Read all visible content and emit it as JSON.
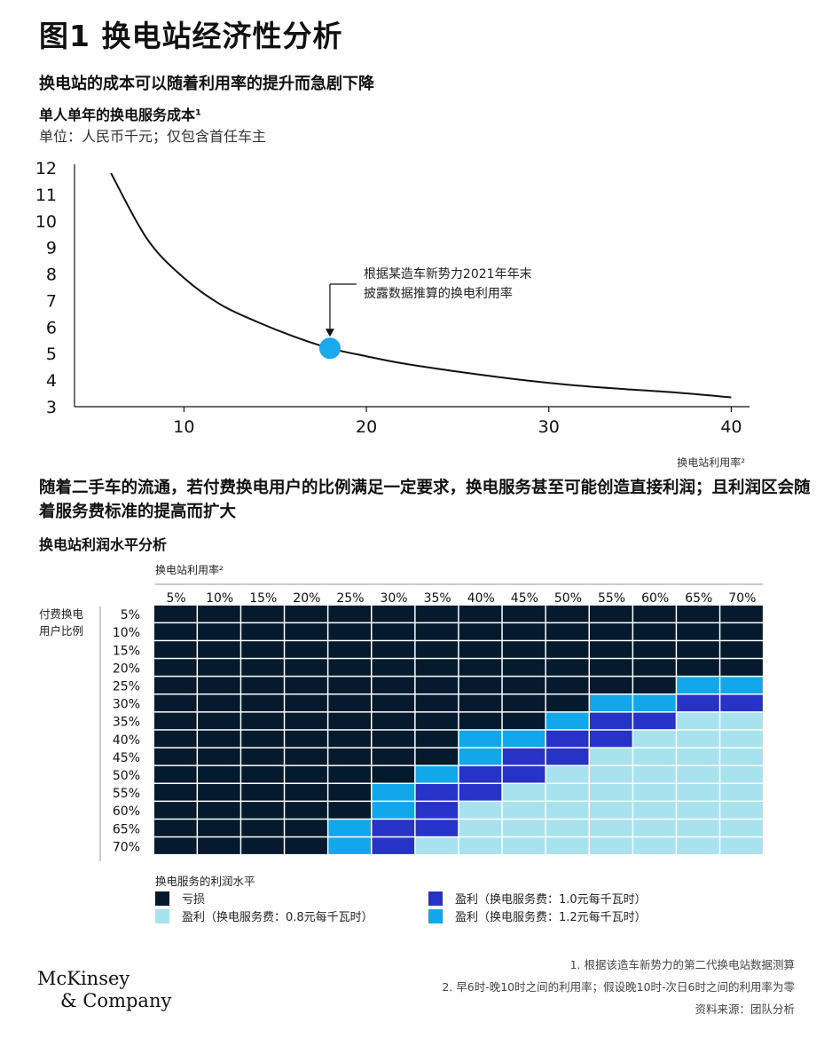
{
  "header": {
    "title": "图1 换电站经济性分析",
    "subtitle1": "换电站的成本可以随着利用率的提升而急剧下降",
    "chart1_title": "单人单年的换电服务成本¹",
    "chart1_unit": "单位：人民币千元；仅包含首任车主"
  },
  "section2": {
    "heading": "随着二手车的流通，若付费换电用户的比例满足一定要求，换电服务甚至可能创造直接利润；且利润区会随着服务费标准的提高而扩大",
    "chart2_title": "换电站利润水平分析"
  },
  "colors": {
    "loss": "#061a2e",
    "profit_0_8": "#a8e2ee",
    "profit_1_0": "#2733c6",
    "profit_1_2": "#12a7ea",
    "line": "#111111",
    "marker": "#1aa8ee"
  },
  "chart_data": [
    {
      "type": "line",
      "title": "单人单年的换电服务成本¹",
      "xlabel": "换电站利用率²",
      "ylabel": "",
      "xlim": [
        4,
        41
      ],
      "ylim": [
        3,
        12
      ],
      "x_ticks": [
        10,
        20,
        30,
        40
      ],
      "y_ticks": [
        3,
        4,
        5,
        6,
        7,
        8,
        9,
        10,
        11,
        12
      ],
      "x": [
        6,
        8,
        10,
        12,
        14,
        16,
        18,
        20,
        22,
        25,
        28,
        31,
        34,
        37,
        40
      ],
      "y": [
        11.8,
        9.3,
        7.85,
        6.85,
        6.2,
        5.65,
        5.2,
        4.9,
        4.63,
        4.32,
        4.05,
        3.83,
        3.67,
        3.53,
        3.35
      ],
      "highlight_point": {
        "x": 18,
        "y": 5.2
      },
      "annotation": [
        "根据某造车新势力2021年年末",
        "披露数据推算的换电利用率"
      ]
    },
    {
      "type": "heatmap",
      "title": "换电站利润水平分析",
      "x_axis_title": "换电站利用率²",
      "y_axis_title": [
        "付费换电",
        "用户比例"
      ],
      "x_labels": [
        "5%",
        "10%",
        "15%",
        "20%",
        "25%",
        "30%",
        "35%",
        "40%",
        "45%",
        "50%",
        "55%",
        "60%",
        "65%",
        "70%"
      ],
      "y_labels": [
        "5%",
        "10%",
        "15%",
        "20%",
        "25%",
        "30%",
        "35%",
        "40%",
        "45%",
        "50%",
        "55%",
        "60%",
        "65%",
        "70%"
      ],
      "legend_title": "换电服务的利润水平",
      "legend": [
        {
          "code": 0,
          "label": "亏损"
        },
        {
          "code": 1,
          "label": "盈利（换电服务费：0.8元每千瓦时）"
        },
        {
          "code": 2,
          "label": "盈利（换电服务费：1.0元每千瓦时）"
        },
        {
          "code": 3,
          "label": "盈利（换电服务费：1.2元每千瓦时）"
        }
      ],
      "values": [
        [
          0,
          0,
          0,
          0,
          0,
          0,
          0,
          0,
          0,
          0,
          0,
          0,
          0,
          0
        ],
        [
          0,
          0,
          0,
          0,
          0,
          0,
          0,
          0,
          0,
          0,
          0,
          0,
          0,
          0
        ],
        [
          0,
          0,
          0,
          0,
          0,
          0,
          0,
          0,
          0,
          0,
          0,
          0,
          0,
          0
        ],
        [
          0,
          0,
          0,
          0,
          0,
          0,
          0,
          0,
          0,
          0,
          0,
          0,
          0,
          0
        ],
        [
          0,
          0,
          0,
          0,
          0,
          0,
          0,
          0,
          0,
          0,
          0,
          0,
          3,
          3
        ],
        [
          0,
          0,
          0,
          0,
          0,
          0,
          0,
          0,
          0,
          0,
          3,
          3,
          2,
          2
        ],
        [
          0,
          0,
          0,
          0,
          0,
          0,
          0,
          0,
          0,
          3,
          2,
          2,
          1,
          1
        ],
        [
          0,
          0,
          0,
          0,
          0,
          0,
          0,
          3,
          3,
          2,
          2,
          1,
          1,
          1
        ],
        [
          0,
          0,
          0,
          0,
          0,
          0,
          0,
          3,
          2,
          2,
          1,
          1,
          1,
          1
        ],
        [
          0,
          0,
          0,
          0,
          0,
          0,
          3,
          2,
          2,
          1,
          1,
          1,
          1,
          1
        ],
        [
          0,
          0,
          0,
          0,
          0,
          3,
          2,
          2,
          1,
          1,
          1,
          1,
          1,
          1
        ],
        [
          0,
          0,
          0,
          0,
          0,
          3,
          2,
          1,
          1,
          1,
          1,
          1,
          1,
          1
        ],
        [
          0,
          0,
          0,
          0,
          3,
          2,
          2,
          1,
          1,
          1,
          1,
          1,
          1,
          1
        ],
        [
          0,
          0,
          0,
          0,
          3,
          2,
          1,
          1,
          1,
          1,
          1,
          1,
          1,
          1
        ]
      ]
    }
  ],
  "footnotes": [
    "1. 根据该造车新势力的第二代换电站数据测算",
    "2. 早6时-晚10时之间的利用率；假设晚10时-次日6时之间的利用率为零",
    "资料来源：团队分析"
  ],
  "brand": {
    "line1": "McKinsey",
    "line2": "& Company"
  }
}
